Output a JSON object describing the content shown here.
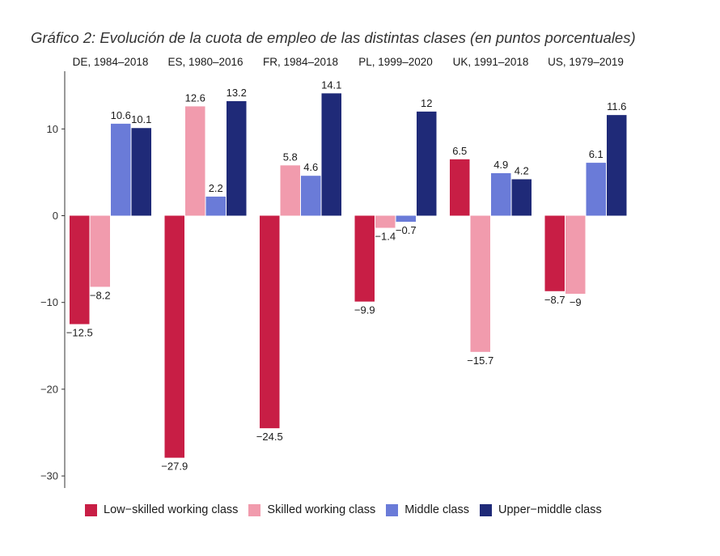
{
  "chart_data": {
    "type": "bar",
    "title": "Gráfico 2: Evolución de la cuota de empleo de las distintas clases (en puntos porcentuales)",
    "xlabel": "",
    "ylabel": "",
    "ylim": [
      -31.5,
      16.8
    ],
    "yticks": [
      10,
      0,
      -10,
      -20,
      -30
    ],
    "ytick_labels": [
      "10",
      "0",
      "−10",
      "−20",
      "−30"
    ],
    "panels": [
      {
        "label": "DE, 1984–2018",
        "values": [
          -12.5,
          -8.2,
          10.6,
          10.1
        ],
        "value_labels": [
          "−12.5",
          "−8.2",
          "10.6",
          "10.1"
        ]
      },
      {
        "label": "ES, 1980–2016",
        "values": [
          -27.9,
          12.6,
          2.2,
          13.2
        ],
        "value_labels": [
          "−27.9",
          "12.6",
          "2.2",
          "13.2"
        ]
      },
      {
        "label": "FR, 1984–2018",
        "values": [
          -24.5,
          5.8,
          4.6,
          14.1
        ],
        "value_labels": [
          "−24.5",
          "5.8",
          "4.6",
          "14.1"
        ]
      },
      {
        "label": "PL, 1999–2020",
        "values": [
          -9.9,
          -1.4,
          -0.7,
          12
        ],
        "value_labels": [
          "−9.9",
          "−1.4",
          "−0.7",
          "12"
        ]
      },
      {
        "label": "UK, 1991–2018",
        "values": [
          6.5,
          -15.7,
          4.9,
          4.2
        ],
        "value_labels": [
          "6.5",
          "−15.7",
          "4.9",
          "4.2"
        ]
      },
      {
        "label": "US, 1979–2019",
        "values": [
          -8.7,
          -9,
          6.1,
          11.6
        ],
        "value_labels": [
          "−8.7",
          "−9",
          "6.1",
          "11.6"
        ]
      }
    ],
    "series": [
      {
        "name": "Low−skilled working class",
        "color": "#c81e45"
      },
      {
        "name": "Skilled working class",
        "color": "#f19bad"
      },
      {
        "name": "Middle class",
        "color": "#6a7bd8"
      },
      {
        "name": "Upper−middle class",
        "color": "#1f2a78"
      }
    ],
    "legend_position": "bottom"
  }
}
